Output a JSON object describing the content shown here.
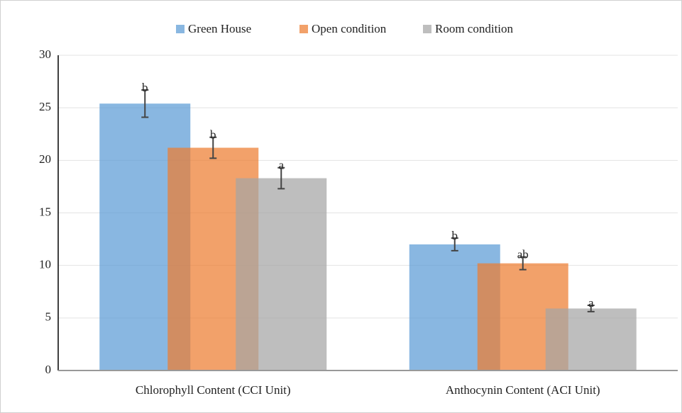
{
  "chart_data": {
    "type": "bar",
    "categories": [
      "Chlorophyll Content (CCI Unit)",
      "Anthocynin Content (ACI Unit)"
    ],
    "series": [
      {
        "name": "Green House",
        "color": "#5b9bd5",
        "values": [
          25.4,
          12.0
        ],
        "errors": [
          1.3,
          0.6
        ],
        "letters": [
          "b",
          "b"
        ]
      },
      {
        "name": "Open condition",
        "color": "#ed7d31",
        "values": [
          21.2,
          10.2
        ],
        "errors": [
          1.0,
          0.6
        ],
        "letters": [
          "b",
          "ab"
        ]
      },
      {
        "name": "Room condition",
        "color": "#a5a5a5",
        "values": [
          18.3,
          5.9
        ],
        "errors": [
          1.0,
          0.3
        ],
        "letters": [
          "a",
          "a"
        ]
      }
    ],
    "ylim": [
      0,
      30
    ],
    "yticks": [
      0,
      5,
      10,
      15,
      20,
      25,
      30
    ],
    "grid": true,
    "legend": "top"
  }
}
